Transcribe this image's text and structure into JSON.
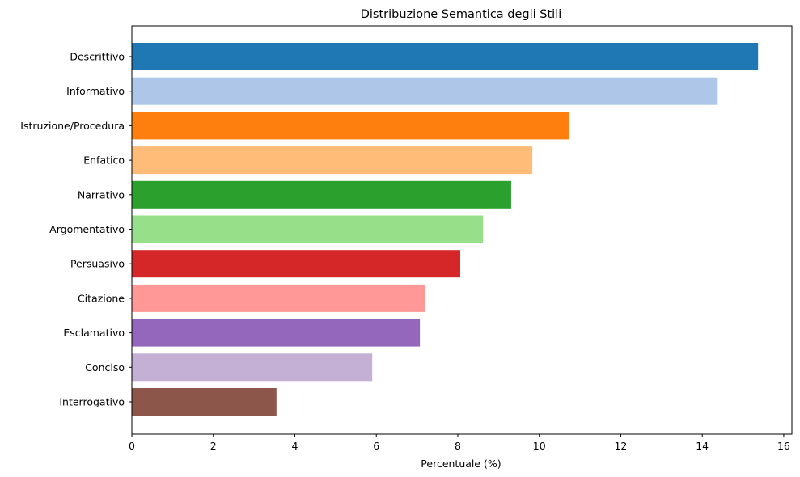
{
  "chart_data": {
    "type": "bar",
    "orientation": "horizontal",
    "title": "Distribuzione Semantica degli Stili",
    "xlabel": "Percentuale (%)",
    "ylabel": "",
    "xlim": [
      0,
      16.2
    ],
    "xticks": [
      0,
      2,
      4,
      6,
      8,
      10,
      12,
      14,
      16
    ],
    "grid": false,
    "categories": [
      "Descrittivo",
      "Informativo",
      "Istruzione/Procedura",
      "Enfatico",
      "Narrativo",
      "Argomentativo",
      "Persuasivo",
      "Citazione",
      "Esclamativo",
      "Conciso",
      "Interrogativo"
    ],
    "values": [
      15.37,
      14.38,
      10.74,
      9.83,
      9.31,
      8.62,
      8.06,
      7.19,
      7.07,
      5.9,
      3.55
    ],
    "colors": [
      "#1f77b4",
      "#aec7e8",
      "#ff7f0e",
      "#ffbb78",
      "#2ca02c",
      "#98df8a",
      "#d62728",
      "#ff9896",
      "#9467bd",
      "#c5b0d5",
      "#8c564b"
    ]
  }
}
